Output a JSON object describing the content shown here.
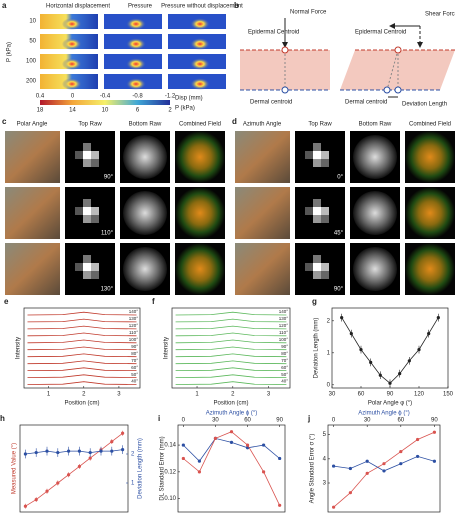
{
  "figure": {
    "a": {
      "label": "a",
      "columns": [
        "Horizontal displacement",
        "Pressure",
        "Pressure without displacement"
      ],
      "ylabel": "P (kPa)",
      "rows": [
        "10",
        "50",
        "100",
        "200"
      ],
      "disp_ticks": [
        "0.4",
        "0",
        "-0.4",
        "-0.8",
        "-1.2"
      ],
      "disp_unit": "Disp (mm)",
      "p_ticks": [
        "18",
        "14",
        "10",
        "6",
        "2"
      ],
      "p_unit": "P (kPa)"
    },
    "b": {
      "label": "b",
      "normal_force": "Normal Force",
      "epidermal_left": "Epidermal Centroid",
      "dermal_left": "Dermal centroid",
      "shear_force": "Shear Force",
      "epidermal_right": "Epidermal Centroid",
      "dermal_right": "Dermal centroid",
      "deviation": "Deviation Length"
    },
    "c": {
      "label": "c",
      "columns": [
        "Polar Angle",
        "Top Raw",
        "Bottom Raw",
        "Combined Field"
      ],
      "angles": [
        "90°",
        "110°",
        "130°"
      ]
    },
    "d": {
      "label": "d",
      "columns": [
        "Azimuth Angle",
        "Top Raw",
        "Bottom Raw",
        "Combined Field"
      ],
      "angles": [
        "0°",
        "45°",
        "90°"
      ]
    }
  },
  "chart_data": [
    {
      "type": "waterfall",
      "label": "e",
      "xlabel": "Position (cm)",
      "ylabel": "Intensity",
      "color": "#c0392b",
      "x": [
        0.4,
        1.4,
        2.0,
        2.6,
        3.5
      ],
      "xlim": [
        0.3,
        3.6
      ],
      "xticks": [
        1,
        2,
        3
      ],
      "ylim": [
        -0.5,
        11
      ],
      "series": [
        {
          "name": "40°",
          "values": [
            0,
            0.05,
            0.4,
            0.05,
            0
          ]
        },
        {
          "name": "50°",
          "values": [
            1,
            1.05,
            1.4,
            1.05,
            1
          ]
        },
        {
          "name": "60°",
          "values": [
            2,
            2.05,
            2.4,
            2.05,
            2
          ]
        },
        {
          "name": "70°",
          "values": [
            3,
            3.05,
            3.4,
            3.05,
            3
          ]
        },
        {
          "name": "80°",
          "values": [
            4,
            4.05,
            4.4,
            4.05,
            4
          ]
        },
        {
          "name": "90°",
          "values": [
            5,
            5.05,
            5.4,
            5.05,
            5
          ]
        },
        {
          "name": "100°",
          "values": [
            6,
            6.05,
            6.4,
            6.05,
            6
          ]
        },
        {
          "name": "110°",
          "values": [
            7,
            7.05,
            7.4,
            7.05,
            7
          ]
        },
        {
          "name": "120°",
          "values": [
            8,
            8.05,
            8.4,
            8.05,
            8
          ]
        },
        {
          "name": "130°",
          "values": [
            9,
            9.05,
            9.4,
            9.05,
            9
          ]
        },
        {
          "name": "140°",
          "values": [
            10,
            10.05,
            10.4,
            10.05,
            10
          ]
        }
      ]
    },
    {
      "type": "waterfall",
      "label": "f",
      "xlabel": "Position (cm)",
      "ylabel": "Intensity",
      "color": "#5cb85c",
      "x": [
        0.4,
        1.4,
        2.0,
        2.6,
        3.5
      ],
      "xlim": [
        0.3,
        3.6
      ],
      "xticks": [
        1,
        2,
        3
      ],
      "ylim": [
        -0.5,
        11
      ],
      "series": [
        {
          "name": "40°",
          "values": [
            0,
            0.05,
            0.4,
            0.05,
            0
          ]
        },
        {
          "name": "50°",
          "values": [
            1,
            1.05,
            1.4,
            1.05,
            1
          ]
        },
        {
          "name": "60°",
          "values": [
            2,
            2.05,
            2.4,
            2.05,
            2
          ]
        },
        {
          "name": "70°",
          "values": [
            3,
            3.05,
            3.4,
            3.05,
            3
          ]
        },
        {
          "name": "80°",
          "values": [
            4,
            4.05,
            4.4,
            4.05,
            4
          ]
        },
        {
          "name": "90°",
          "values": [
            5,
            5.05,
            5.4,
            5.05,
            5
          ]
        },
        {
          "name": "100°",
          "values": [
            6,
            6.05,
            6.4,
            6.05,
            6
          ]
        },
        {
          "name": "110°",
          "values": [
            7,
            7.05,
            7.4,
            7.05,
            7
          ]
        },
        {
          "name": "120°",
          "values": [
            8,
            8.05,
            8.4,
            8.05,
            8
          ]
        },
        {
          "name": "130°",
          "values": [
            9,
            9.05,
            9.4,
            9.05,
            9
          ]
        },
        {
          "name": "140°",
          "values": [
            10,
            10.05,
            10.4,
            10.05,
            10
          ]
        }
      ]
    },
    {
      "type": "line",
      "label": "g",
      "xlabel": "Polar Angle φ (°)",
      "ylabel": "Deviation Length (mm)",
      "x": [
        40,
        50,
        60,
        70,
        80,
        90,
        100,
        110,
        120,
        130,
        140
      ],
      "xlim": [
        30,
        150
      ],
      "xticks": [
        30,
        60,
        90,
        120,
        150
      ],
      "ylim": [
        -0.1,
        2.4
      ],
      "yticks": [
        0,
        1,
        2
      ],
      "series": [
        {
          "color": "#222222",
          "values": [
            2.1,
            1.6,
            1.1,
            0.7,
            0.3,
            0.05,
            0.35,
            0.75,
            1.1,
            1.6,
            2.1
          ],
          "errors": [
            0.12,
            0.12,
            0.12,
            0.12,
            0.12,
            0.12,
            0.12,
            0.12,
            0.12,
            0.12,
            0.12
          ]
        }
      ]
    },
    {
      "type": "line",
      "label": "h",
      "ylabel": "Measured Value (°)",
      "y2label": "Deviation Length (mm)",
      "x": [
        0,
        10,
        20,
        30,
        40,
        50,
        60,
        70,
        80,
        90
      ],
      "xlim": [
        -5,
        95
      ],
      "ylim": [
        -5,
        100
      ],
      "y2lim": [
        0,
        3
      ],
      "y2ticks": [
        1,
        2
      ],
      "series": [
        {
          "color": "#d9534f",
          "values": [
            2,
            10,
            20,
            30,
            40,
            50,
            60,
            70,
            80,
            90
          ],
          "errors": [
            3,
            3,
            3,
            3,
            3,
            3,
            3,
            3,
            3,
            3
          ]
        },
        {
          "color": "#2c4fa3",
          "axis": "y2",
          "values": [
            2.0,
            2.05,
            2.1,
            2.05,
            2.1,
            2.1,
            2.05,
            2.1,
            2.1,
            2.15
          ],
          "errors": [
            0.15,
            0.15,
            0.15,
            0.15,
            0.15,
            0.15,
            0.15,
            0.15,
            0.15,
            0.15
          ]
        }
      ]
    },
    {
      "type": "line",
      "label": "i",
      "xlabel": "Azimuth Angle ϕ (°)",
      "xaxis_position": "top",
      "ylabel": "DL Standard Error (mm)",
      "x": [
        0,
        15,
        30,
        45,
        60,
        75,
        90
      ],
      "xlim": [
        -5,
        95
      ],
      "xticks": [
        0,
        30,
        60,
        90
      ],
      "ylim": [
        0.09,
        0.155
      ],
      "yticks": [
        {
          "value": 0.1,
          "label": "0.10"
        },
        0.12,
        0.14
      ],
      "series": [
        {
          "color": "#2c4fa3",
          "values": [
            0.14,
            0.128,
            0.145,
            0.142,
            0.138,
            0.14,
            0.13
          ]
        },
        {
          "color": "#d9534f",
          "values": [
            0.13,
            0.12,
            0.145,
            0.15,
            0.14,
            0.12,
            0.095
          ]
        }
      ]
    },
    {
      "type": "line",
      "label": "j",
      "xlabel": "Azimuth Angle ϕ (°)",
      "xaxis_position": "top",
      "ylabel": "Angle Standard Error σ (°)",
      "x": [
        0,
        15,
        30,
        45,
        60,
        75,
        90
      ],
      "xlim": [
        -5,
        95
      ],
      "xticks": [
        0,
        30,
        60,
        90
      ],
      "ylim": [
        1.8,
        5.4
      ],
      "yticks": [
        3,
        4,
        5
      ],
      "series": [
        {
          "color": "#d9534f",
          "values": [
            2.0,
            2.6,
            3.4,
            3.8,
            4.3,
            4.8,
            5.1
          ]
        },
        {
          "color": "#2c4fa3",
          "values": [
            3.7,
            3.6,
            3.9,
            3.5,
            3.8,
            4.1,
            3.9
          ]
        }
      ]
    }
  ]
}
